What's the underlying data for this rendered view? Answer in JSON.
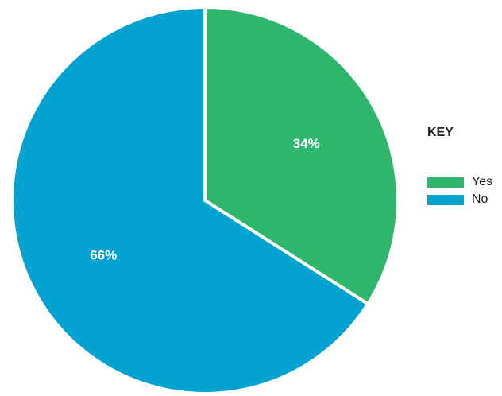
{
  "chart_data": {
    "type": "pie",
    "categories": [
      "Yes",
      "No"
    ],
    "values": [
      34,
      66
    ],
    "value_labels": [
      "34%",
      "66%"
    ],
    "colors": [
      "#2eb66c",
      "#03a3d1"
    ],
    "legend_title": "KEY",
    "legend_position": "right",
    "start_angle": "12 o'clock",
    "direction": "clockwise"
  }
}
